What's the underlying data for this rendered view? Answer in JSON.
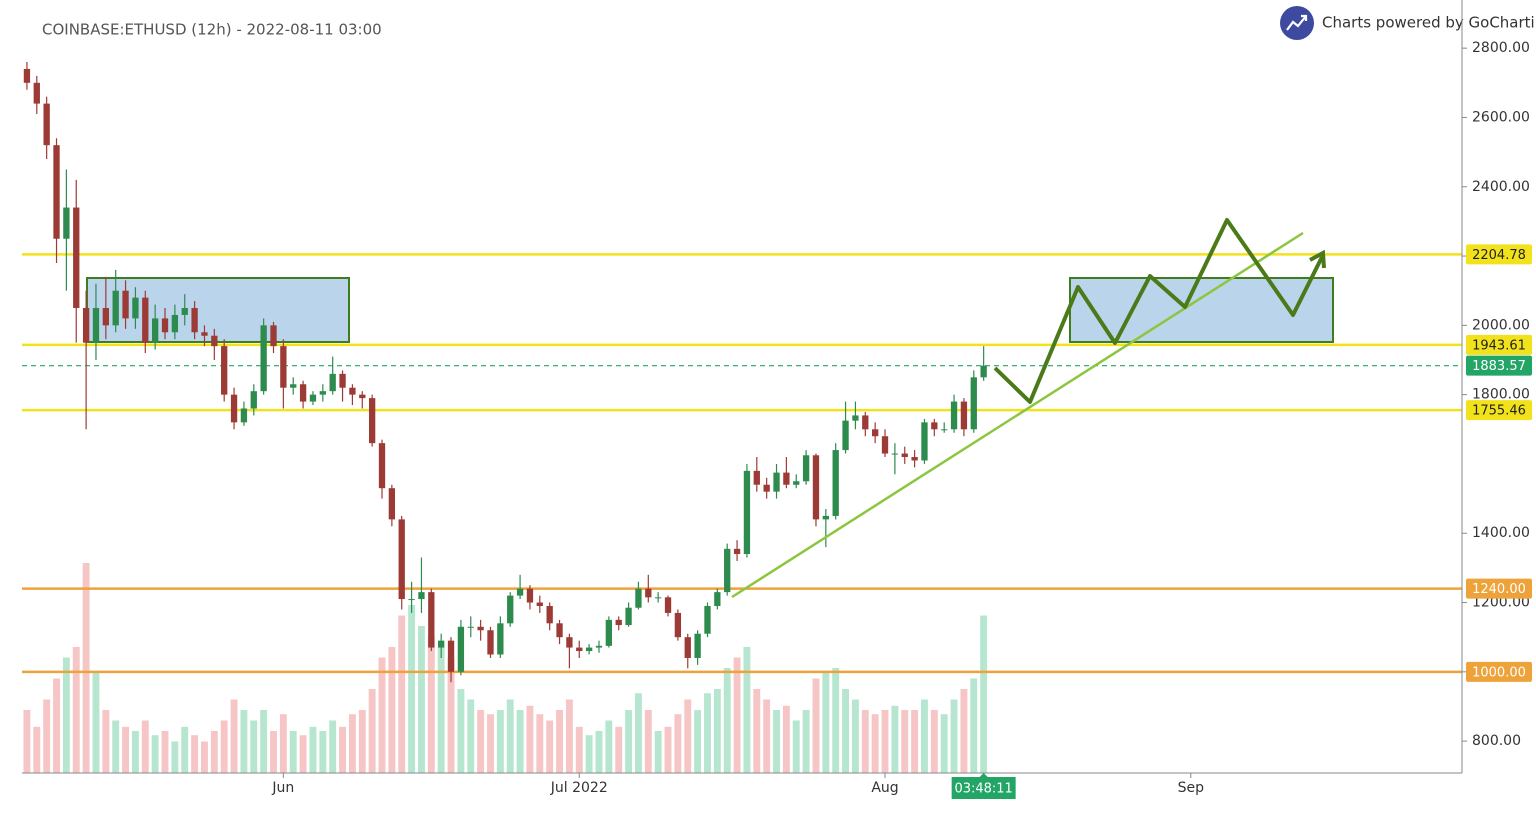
{
  "chart_data": {
    "type": "candlestick",
    "title": "COINBASE:ETHUSD (12h) - 2022-08-11 03:00",
    "brand": "Charts powered by GoCharti",
    "categories": [
      null,
      null,
      null,
      null,
      null,
      null,
      null,
      null,
      null,
      null,
      null,
      null,
      null,
      null,
      null,
      null,
      null,
      null,
      null,
      null,
      null,
      null,
      null,
      null,
      null,
      null,
      "Jun",
      null,
      null,
      null,
      null,
      null,
      null,
      null,
      null,
      null,
      null,
      null,
      null,
      null,
      null,
      null,
      null,
      null,
      null,
      null,
      null,
      null,
      null,
      null,
      null,
      null,
      null,
      null,
      null,
      null,
      "Jul 2022",
      null,
      null,
      null,
      null,
      null,
      null,
      null,
      null,
      null,
      null,
      null,
      null,
      null,
      null,
      null,
      null,
      null,
      null,
      null,
      null,
      null,
      null,
      null,
      null,
      null,
      null,
      null,
      null,
      null,
      null,
      "Aug",
      null,
      null,
      null,
      null,
      null,
      null,
      null,
      null,
      null,
      null,
      null,
      null,
      null,
      null,
      null,
      null,
      null,
      null,
      null,
      null,
      null,
      null,
      null,
      null,
      null,
      null,
      null,
      null,
      null,
      null,
      "Sep",
      null,
      null,
      null,
      null,
      null,
      null,
      null,
      null,
      null,
      null,
      null,
      null,
      null,
      null,
      null,
      null,
      null,
      null,
      null,
      null,
      null,
      null,
      null,
      null,
      null,
      null,
      null
    ],
    "open": [
      2740,
      2700,
      2640,
      2520,
      2250,
      2340,
      2050,
      1950,
      2050,
      2000,
      2100,
      2020,
      2080,
      1950,
      2020,
      1980,
      2030,
      2050,
      1980,
      1970,
      1940,
      1800,
      1720,
      1760,
      1810,
      2000,
      1940,
      1820,
      1830,
      1780,
      1800,
      1810,
      1860,
      1820,
      1800,
      1790,
      1660,
      1530,
      1440,
      1210,
      1210,
      1230,
      1070,
      1090,
      1000,
      1130,
      1130,
      1120,
      1050,
      1140,
      1220,
      1240,
      1200,
      1190,
      1140,
      1100,
      1070,
      1060,
      1070,
      1075,
      1150,
      1135,
      1185,
      1240,
      1215,
      1215,
      1170,
      1100,
      1040,
      1110,
      1190,
      1230,
      1355,
      1340,
      1580,
      1540,
      1520,
      1575,
      1540,
      1550,
      1625,
      1440,
      1450,
      1640,
      1725,
      1740,
      1700,
      1680,
      1630,
      1630,
      1620,
      1610,
      1720,
      1700,
      1700,
      1780,
      1700,
      1850,
      null,
      null,
      null,
      null,
      null,
      null,
      null,
      null,
      null,
      null,
      null,
      null,
      null,
      null,
      null,
      null,
      null,
      null,
      null,
      null,
      null,
      null,
      null,
      null,
      null,
      null,
      null,
      null,
      null,
      null,
      null,
      null,
      null,
      null,
      null,
      null,
      null,
      null,
      null,
      null,
      null,
      null,
      null,
      null,
      null,
      null,
      null,
      null
    ],
    "high": [
      2760,
      2720,
      2660,
      2540,
      2450,
      2420,
      2100,
      2120,
      2140,
      2160,
      2130,
      2110,
      2100,
      2060,
      2050,
      2060,
      2090,
      2070,
      2000,
      1990,
      1960,
      1820,
      1780,
      1830,
      2020,
      2010,
      1960,
      1850,
      1840,
      1810,
      1830,
      1910,
      1870,
      1830,
      1810,
      1800,
      1670,
      1540,
      1450,
      1260,
      1330,
      1240,
      1110,
      1100,
      1150,
      1160,
      1150,
      1130,
      1160,
      1230,
      1280,
      1250,
      1220,
      1200,
      1150,
      1110,
      1090,
      1080,
      1090,
      1160,
      1160,
      1200,
      1260,
      1280,
      1230,
      1220,
      1180,
      1110,
      1120,
      1200,
      1240,
      1370,
      1380,
      1600,
      1620,
      1560,
      1600,
      1620,
      1570,
      1640,
      1630,
      1470,
      1660,
      1780,
      1780,
      1750,
      1720,
      1700,
      1660,
      1650,
      1640,
      1730,
      1730,
      1720,
      1800,
      1790,
      1870,
      1940,
      null,
      null,
      null,
      null,
      null,
      null,
      null,
      null,
      null,
      null,
      null,
      null,
      null,
      null,
      null,
      null,
      null,
      null,
      null,
      null,
      null,
      null,
      null,
      null,
      null,
      null,
      null,
      null,
      null,
      null,
      null,
      null,
      null,
      null,
      null,
      null,
      null,
      null,
      null,
      null,
      null,
      null,
      null,
      null,
      null,
      null,
      null,
      null
    ],
    "low": [
      2680,
      2610,
      2480,
      2180,
      2100,
      1950,
      1700,
      1900,
      1960,
      1980,
      1990,
      1990,
      1920,
      1930,
      1960,
      1960,
      2000,
      1960,
      1940,
      1900,
      1780,
      1700,
      1710,
      1740,
      1800,
      1920,
      1760,
      1800,
      1760,
      1770,
      1780,
      1800,
      1780,
      1770,
      1760,
      1650,
      1500,
      1420,
      1180,
      1170,
      1170,
      1060,
      1040,
      970,
      990,
      1100,
      1090,
      1040,
      1040,
      1130,
      1210,
      1180,
      1170,
      1120,
      1080,
      1010,
      1040,
      1050,
      1055,
      1070,
      1120,
      1130,
      1180,
      1200,
      1200,
      1160,
      1090,
      1010,
      1020,
      1100,
      1180,
      1220,
      1320,
      1330,
      1520,
      1500,
      1500,
      1530,
      1530,
      1540,
      1420,
      1360,
      1440,
      1630,
      1700,
      1680,
      1660,
      1620,
      1570,
      1600,
      1590,
      1600,
      1680,
      1690,
      1690,
      1680,
      1690,
      1840,
      null,
      null,
      null,
      null,
      null,
      null,
      null,
      null,
      null,
      null,
      null,
      null,
      null,
      null,
      null,
      null,
      null,
      null,
      null,
      null,
      null,
      null,
      null,
      null,
      null,
      null,
      null,
      null,
      null,
      null,
      null,
      null,
      null,
      null,
      null,
      null,
      null,
      null,
      null,
      null,
      null,
      null,
      null,
      null,
      null,
      null,
      null,
      null
    ],
    "close": [
      2700,
      2640,
      2520,
      2250,
      2340,
      2050,
      1950,
      2050,
      2000,
      2100,
      2020,
      2080,
      1950,
      2020,
      1980,
      2030,
      2050,
      1980,
      1970,
      1940,
      1800,
      1720,
      1760,
      1810,
      2000,
      1940,
      1820,
      1830,
      1780,
      1800,
      1810,
      1860,
      1820,
      1800,
      1790,
      1660,
      1530,
      1440,
      1210,
      1210,
      1230,
      1070,
      1090,
      1000,
      1130,
      1130,
      1120,
      1050,
      1140,
      1220,
      1240,
      1200,
      1190,
      1140,
      1100,
      1070,
      1060,
      1070,
      1075,
      1150,
      1135,
      1185,
      1240,
      1215,
      1215,
      1170,
      1100,
      1040,
      1110,
      1190,
      1230,
      1355,
      1340,
      1580,
      1540,
      1520,
      1575,
      1540,
      1550,
      1625,
      1440,
      1450,
      1640,
      1725,
      1740,
      1700,
      1680,
      1630,
      1630,
      1620,
      1610,
      1720,
      1700,
      1700,
      1780,
      1700,
      1850,
      1883.57,
      null,
      null,
      null,
      null,
      null,
      null,
      null,
      null,
      null,
      null,
      null,
      null,
      null,
      null,
      null,
      null,
      null,
      null,
      null,
      null,
      null,
      null,
      null,
      null,
      null,
      null,
      null,
      null,
      null,
      null,
      null,
      null,
      null,
      null,
      null,
      null,
      null,
      null,
      null,
      null,
      null,
      null,
      null,
      null,
      null,
      null,
      null,
      null
    ],
    "volume": [
      30,
      22,
      35,
      45,
      55,
      60,
      100,
      48,
      30,
      25,
      22,
      20,
      25,
      18,
      20,
      15,
      22,
      18,
      15,
      20,
      25,
      35,
      30,
      25,
      30,
      20,
      28,
      20,
      18,
      22,
      20,
      25,
      22,
      28,
      30,
      40,
      55,
      60,
      75,
      80,
      70,
      65,
      60,
      55,
      40,
      35,
      30,
      28,
      30,
      35,
      30,
      32,
      28,
      25,
      30,
      35,
      22,
      18,
      20,
      25,
      22,
      30,
      38,
      30,
      20,
      22,
      28,
      35,
      30,
      38,
      40,
      50,
      55,
      60,
      40,
      35,
      30,
      32,
      25,
      30,
      45,
      48,
      50,
      40,
      35,
      30,
      28,
      30,
      32,
      30,
      30,
      35,
      30,
      28,
      35,
      40,
      45,
      75,
      null,
      null,
      null,
      null,
      null,
      null,
      null,
      null,
      null,
      null,
      null,
      null,
      null,
      null,
      null,
      null,
      null,
      null,
      null,
      null,
      null,
      null,
      null,
      null,
      null,
      null,
      null,
      null,
      null,
      null,
      null,
      null,
      null,
      null,
      null,
      null,
      null,
      null,
      null,
      null,
      null,
      null,
      null,
      null,
      null,
      null,
      null,
      null
    ],
    "up_color": "#2e8b4e",
    "down_color": "#9c3b36",
    "up_volume_color": "#b6e6cf",
    "down_volume_color": "#f6c6c6",
    "ylim": [
      708,
      2939
    ],
    "yticks": [
      {
        "value": 800,
        "label": "800.00"
      },
      {
        "value": 1000,
        "label": "1000.00"
      },
      {
        "value": 1200,
        "label": "1200.00"
      },
      {
        "value": 1400,
        "label": "1400.00"
      },
      {
        "value": 1800,
        "label": "1800.00"
      },
      {
        "value": 2000,
        "label": "2000.00"
      },
      {
        "value": 2200,
        "label": "2200.00"
      },
      {
        "value": 2400,
        "label": "2400.00"
      },
      {
        "value": 2600,
        "label": "2600.00"
      },
      {
        "value": 2800,
        "label": "2800.00"
      }
    ],
    "levels": [
      {
        "value": 2204.78,
        "color": "#f2e21c",
        "text_color": "#222"
      },
      {
        "value": 1943.61,
        "color": "#f2e21c",
        "text_color": "#222"
      },
      {
        "value": 1755.46,
        "color": "#f2e21c",
        "text_color": "#222"
      },
      {
        "value": {
          "value": 1240,
          "label": "1240.00"
        },
        "color": "#eea23a",
        "text_color": "#fff"
      },
      {
        "value": {
          "value": 1000,
          "label": "1000.00"
        },
        "color": "#eea23a",
        "text_color": "#fff"
      }
    ],
    "current_price": {
      "value": 1883.57,
      "color": "#22a565"
    },
    "countdown": "03:48:11"
  }
}
